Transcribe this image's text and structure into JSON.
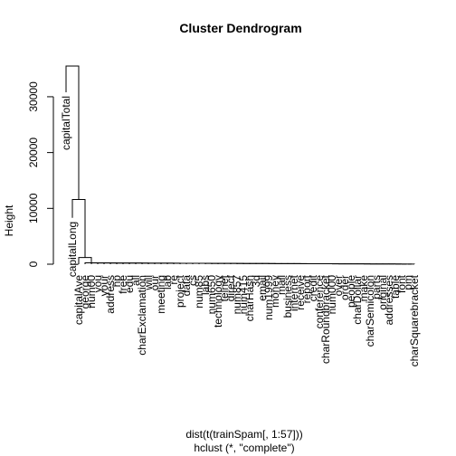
{
  "chart_data": {
    "type": "dendrogram",
    "title": "Cluster Dendrogram",
    "ylabel": "Height",
    "xlabel": "dist(t(trainSpam[, 1:57]))",
    "sublabel": "hclust (*, \"complete\")",
    "ylim": [
      0,
      35000
    ],
    "yticks": [
      0,
      10000,
      20000,
      30000
    ],
    "leaves": [
      "capitalTotal",
      "capitalLong",
      "capitalAve",
      "george",
      "num00",
      "you",
      "your",
      "address",
      "hp",
      "free",
      "edu",
      "all",
      "charExclamation",
      "will",
      "our",
      "meeting",
      "lab",
      "re",
      "project",
      "data",
      "cs",
      "num85",
      "labs",
      "num650",
      "technology",
      "telnet",
      "direct",
      "num857",
      "num415",
      "charHash",
      "3d",
      "email",
      "num1999",
      "money",
      "mail",
      "business",
      "internet",
      "receive",
      "report",
      "credit",
      "conference",
      "charRoundbracket",
      "num000",
      "over",
      "order",
      "people",
      "charDollar",
      "make",
      "charSemicolon",
      "parts",
      "original",
      "addresses",
      "table",
      "font",
      "pm",
      "charSquarebracket"
    ],
    "merges": [
      {
        "height": 35500,
        "left": "capitalTotal",
        "right": "rest"
      },
      {
        "height": 11600,
        "left": "capitalLong",
        "right": "rest"
      },
      {
        "height": 1200,
        "left": "capitalAve",
        "right": "rest"
      },
      {
        "height": 250,
        "left": "george",
        "right": "rest"
      }
    ]
  }
}
